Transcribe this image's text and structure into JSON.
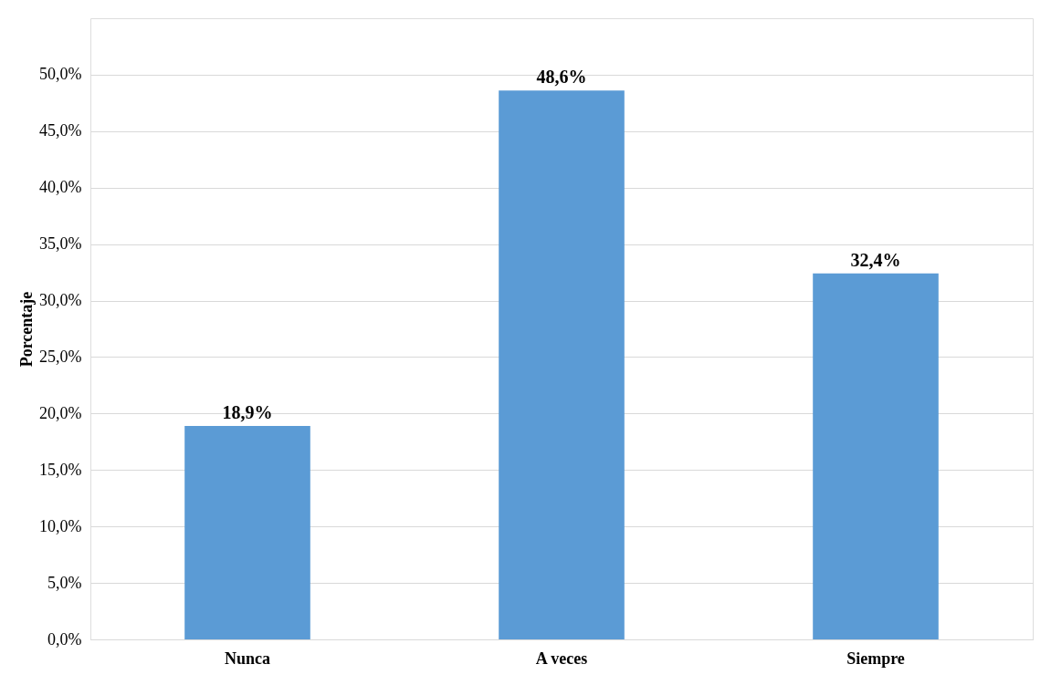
{
  "chart_data": {
    "type": "bar",
    "ylabel": "Porcentaje",
    "categories": [
      "Nunca",
      "A veces",
      "Siempre"
    ],
    "values": [
      18.9,
      48.6,
      32.4
    ],
    "value_labels": [
      "18,9%",
      "48,6%",
      "32,4%"
    ],
    "color": "#5b9bd5",
    "ylim": [
      0,
      55
    ],
    "yticks": [
      {
        "value": 0,
        "label": "0,0%"
      },
      {
        "value": 5,
        "label": "5,0%"
      },
      {
        "value": 10,
        "label": "10,0%"
      },
      {
        "value": 15,
        "label": "15,0%"
      },
      {
        "value": 20,
        "label": "20,0%"
      },
      {
        "value": 25,
        "label": "25,0%"
      },
      {
        "value": 30,
        "label": "30,0%"
      },
      {
        "value": 35,
        "label": "35,0%"
      },
      {
        "value": 40,
        "label": "40,0%"
      },
      {
        "value": 45,
        "label": "45,0%"
      },
      {
        "value": 50,
        "label": "50,0%"
      }
    ],
    "grid": "y"
  }
}
